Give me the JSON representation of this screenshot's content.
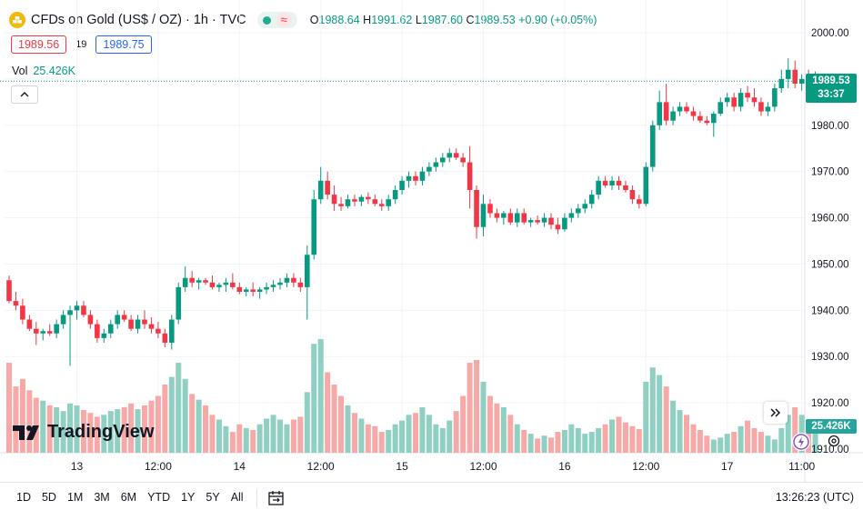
{
  "header": {
    "symbol_title": "CFDs on Gold (US$ / OZ) · 1h · TVC",
    "open_label": "O",
    "open": "1988.64",
    "high_label": "H",
    "high": "1991.62",
    "low_label": "L",
    "low": "1987.60",
    "close_label": "C",
    "close": "1989.53",
    "change": "+0.90 (+0.05%)"
  },
  "quote": {
    "bid": "1989.56",
    "spread": "19",
    "ask": "1989.75"
  },
  "volume_legend": {
    "label": "Vol",
    "value": "25.426K"
  },
  "price_tag": {
    "price": "1989.53",
    "countdown": "33:37"
  },
  "volume_tag": "25.426K",
  "logo_text": "TradingView",
  "range_buttons": [
    "1D",
    "5D",
    "1M",
    "3M",
    "6M",
    "YTD",
    "1Y",
    "5Y",
    "All"
  ],
  "clock": "13:26:23 (UTC)",
  "colors": {
    "up": "#089981",
    "down": "#f23645",
    "up_vol": "#8fd0c3",
    "down_vol": "#f7a9a7"
  },
  "chart_data": {
    "type": "candlestick",
    "ylim": [
      1908,
      2005
    ],
    "y_ticks": [
      1910,
      1920,
      1930,
      1940,
      1950,
      1960,
      1970,
      1980,
      1990,
      2000
    ],
    "y_tick_labels": [
      "1910.00",
      "1920.00",
      "1930.00",
      "1940.00",
      "1950.00",
      "1960.00",
      "1970.00",
      "1980.00",
      "1990.00",
      "2000.00"
    ],
    "x_tick_labels": [
      {
        "label": "13",
        "index": 10
      },
      {
        "label": "12:00",
        "index": 22
      },
      {
        "label": "14",
        "index": 34
      },
      {
        "label": "12:00",
        "index": 46
      },
      {
        "label": "15",
        "index": 58
      },
      {
        "label": "12:00",
        "index": 70
      },
      {
        "label": "16",
        "index": 82
      },
      {
        "label": "12:00",
        "index": 94
      },
      {
        "label": "17",
        "index": 106
      },
      {
        "label": "11:00",
        "index": 117
      }
    ],
    "last_price": 1989.53,
    "candles": [
      [
        1946.5,
        1947.5,
        1941.5,
        1942
      ],
      [
        1942,
        1944,
        1940,
        1941
      ],
      [
        1941,
        1942.5,
        1937,
        1938
      ],
      [
        1938,
        1939,
        1935.5,
        1936
      ],
      [
        1936,
        1937.5,
        1932.5,
        1935
      ],
      [
        1935,
        1936,
        1933.5,
        1935.5
      ],
      [
        1935.5,
        1937,
        1934.5,
        1935
      ],
      [
        1935,
        1938,
        1934,
        1937
      ],
      [
        1937,
        1940,
        1936,
        1939
      ],
      [
        1939,
        1941,
        1928,
        1940
      ],
      [
        1940,
        1942,
        1938,
        1941
      ],
      [
        1941,
        1942,
        1938.5,
        1939
      ],
      [
        1939,
        1940,
        1936,
        1937
      ],
      [
        1937,
        1938,
        1933,
        1934
      ],
      [
        1934,
        1936,
        1933,
        1935
      ],
      [
        1935,
        1938,
        1934,
        1937
      ],
      [
        1937,
        1940,
        1936,
        1939
      ],
      [
        1939,
        1940,
        1937.5,
        1938
      ],
      [
        1938,
        1939,
        1935.5,
        1936
      ],
      [
        1936,
        1939,
        1935,
        1938
      ],
      [
        1938,
        1940,
        1936,
        1937
      ],
      [
        1937,
        1938.5,
        1935,
        1936
      ],
      [
        1936,
        1937.5,
        1934,
        1935
      ],
      [
        1935,
        1936,
        1932,
        1933
      ],
      [
        1933,
        1939,
        1931.5,
        1938
      ],
      [
        1938,
        1946,
        1937,
        1945
      ],
      [
        1945,
        1949.5,
        1944,
        1947
      ],
      [
        1947,
        1948.5,
        1945,
        1946
      ],
      [
        1946,
        1947,
        1944.5,
        1946.5
      ],
      [
        1946.5,
        1947,
        1945.5,
        1946
      ],
      [
        1946,
        1947.5,
        1944.5,
        1945
      ],
      [
        1945,
        1946,
        1944,
        1945.5
      ],
      [
        1945.5,
        1947,
        1944,
        1946
      ],
      [
        1946,
        1948,
        1944.5,
        1945
      ],
      [
        1945,
        1946,
        1943.5,
        1944
      ],
      [
        1944,
        1945,
        1943,
        1944.5
      ],
      [
        1944.5,
        1946,
        1943,
        1944
      ],
      [
        1944,
        1945,
        1942.5,
        1944.5
      ],
      [
        1944.5,
        1946,
        1943.5,
        1945
      ],
      [
        1945,
        1946.5,
        1944,
        1945.5
      ],
      [
        1945.5,
        1947,
        1944.5,
        1946
      ],
      [
        1946,
        1948,
        1945,
        1947
      ],
      [
        1947,
        1948,
        1945,
        1946
      ],
      [
        1946,
        1947,
        1944,
        1945
      ],
      [
        1945,
        1954,
        1938,
        1952
      ],
      [
        1952,
        1966,
        1951,
        1964
      ],
      [
        1964,
        1971,
        1963,
        1968
      ],
      [
        1968,
        1970,
        1964,
        1965
      ],
      [
        1965,
        1967,
        1961.5,
        1963
      ],
      [
        1963,
        1964.5,
        1961.5,
        1962.5
      ],
      [
        1962.5,
        1965,
        1962,
        1964
      ],
      [
        1964,
        1965,
        1962.5,
        1963.5
      ],
      [
        1963.5,
        1965,
        1962.5,
        1964.5
      ],
      [
        1964.5,
        1965.5,
        1963,
        1964
      ],
      [
        1964,
        1965,
        1962.5,
        1963
      ],
      [
        1963,
        1964,
        1961.5,
        1962.5
      ],
      [
        1962.5,
        1965,
        1961.5,
        1964
      ],
      [
        1964,
        1967,
        1963,
        1966
      ],
      [
        1966,
        1969,
        1965,
        1968
      ],
      [
        1968,
        1970,
        1966.5,
        1969
      ],
      [
        1969,
        1970,
        1967,
        1968
      ],
      [
        1968,
        1971,
        1967,
        1970
      ],
      [
        1970,
        1972,
        1969,
        1971
      ],
      [
        1971,
        1973,
        1970,
        1972
      ],
      [
        1972,
        1974,
        1971,
        1973
      ],
      [
        1973,
        1975,
        1972,
        1974
      ],
      [
        1974,
        1975,
        1972.5,
        1973
      ],
      [
        1973,
        1974,
        1971,
        1972
      ],
      [
        1972,
        1975.5,
        1962,
        1966
      ],
      [
        1966,
        1967,
        1955.5,
        1958
      ],
      [
        1958,
        1965,
        1956,
        1963
      ],
      [
        1963,
        1964,
        1960,
        1961
      ],
      [
        1961,
        1962,
        1959,
        1960
      ],
      [
        1960,
        1961.5,
        1958.5,
        1961
      ],
      [
        1961,
        1962,
        1958.5,
        1959
      ],
      [
        1959,
        1962,
        1958,
        1961
      ],
      [
        1961,
        1962,
        1958.5,
        1959
      ],
      [
        1959,
        1960,
        1958,
        1959.5
      ],
      [
        1959.5,
        1960.5,
        1958.5,
        1959
      ],
      [
        1959,
        1961,
        1958,
        1960
      ],
      [
        1960,
        1961,
        1957.5,
        1958.5
      ],
      [
        1958.5,
        1960,
        1956.5,
        1957.5
      ],
      [
        1957.5,
        1961,
        1957,
        1960
      ],
      [
        1960,
        1962,
        1959,
        1961
      ],
      [
        1961,
        1963,
        1960,
        1962
      ],
      [
        1962,
        1964,
        1961,
        1963
      ],
      [
        1963,
        1966,
        1962,
        1965
      ],
      [
        1965,
        1969,
        1964,
        1968
      ],
      [
        1968,
        1969,
        1966.5,
        1967
      ],
      [
        1967,
        1969,
        1966,
        1968
      ],
      [
        1968,
        1969,
        1966,
        1967
      ],
      [
        1967,
        1968,
        1965.5,
        1966
      ],
      [
        1966,
        1967,
        1963,
        1964
      ],
      [
        1964,
        1965,
        1962,
        1963
      ],
      [
        1963,
        1972,
        1962.5,
        1971
      ],
      [
        1971,
        1981,
        1970,
        1980
      ],
      [
        1980,
        1987.5,
        1979,
        1985
      ],
      [
        1985,
        1989,
        1980,
        1981
      ],
      [
        1981,
        1984,
        1980,
        1983
      ],
      [
        1983,
        1985,
        1982,
        1984
      ],
      [
        1984,
        1985,
        1982.5,
        1983
      ],
      [
        1983,
        1984,
        1981,
        1982
      ],
      [
        1982,
        1983,
        1980.5,
        1981
      ],
      [
        1981,
        1982,
        1980,
        1980.5
      ],
      [
        1980.5,
        1983,
        1977.5,
        1982.5
      ],
      [
        1982.5,
        1986,
        1982,
        1985
      ],
      [
        1985,
        1987,
        1984,
        1986
      ],
      [
        1986,
        1987,
        1983,
        1984
      ],
      [
        1984,
        1988,
        1983,
        1987
      ],
      [
        1987,
        1988.5,
        1985,
        1986
      ],
      [
        1986,
        1988,
        1984,
        1985
      ],
      [
        1985,
        1986,
        1982,
        1983
      ],
      [
        1983,
        1985,
        1982,
        1984
      ],
      [
        1984,
        1989,
        1983,
        1988
      ],
      [
        1988,
        1992,
        1987,
        1990
      ],
      [
        1990,
        1994.5,
        1988,
        1992
      ],
      [
        1992,
        1994,
        1988,
        1989
      ],
      [
        1989,
        1991,
        1987.5,
        1990
      ],
      [
        1990,
        1992,
        1987,
        1988.64
      ],
      [
        1988.64,
        1991.62,
        1987.6,
        1989.53
      ]
    ],
    "volume": [
      95,
      70,
      78,
      66,
      58,
      55,
      50,
      48,
      44,
      52,
      50,
      45,
      42,
      38,
      40,
      44,
      46,
      48,
      52,
      46,
      50,
      55,
      60,
      72,
      80,
      95,
      78,
      62,
      56,
      50,
      40,
      35,
      28,
      22,
      30,
      26,
      24,
      30,
      36,
      40,
      35,
      30,
      35,
      38,
      64,
      115,
      124,
      85,
      72,
      60,
      50,
      42,
      36,
      30,
      28,
      22,
      24,
      30,
      34,
      40,
      42,
      48,
      40,
      30,
      26,
      34,
      44,
      60,
      95,
      98,
      75,
      60,
      52,
      48,
      40,
      30,
      24,
      20,
      15,
      18,
      16,
      22,
      24,
      30,
      26,
      20,
      22,
      26,
      30,
      35,
      38,
      32,
      28,
      25,
      75,
      90,
      82,
      70,
      55,
      45,
      40,
      30,
      24,
      18,
      14,
      16,
      20,
      22,
      28,
      34,
      26,
      22,
      18,
      14,
      26,
      40,
      48,
      40,
      34,
      25.426
    ]
  }
}
